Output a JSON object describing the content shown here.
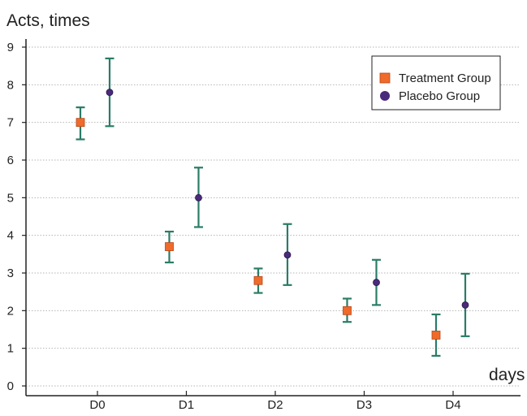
{
  "chart_data": {
    "type": "scatter",
    "ylabel": "Acts, times",
    "xlabel": "days",
    "categories": [
      "D0",
      "D1",
      "D2",
      "D3",
      "D4"
    ],
    "ylim": [
      0,
      9
    ],
    "yticks": [
      "0",
      "1",
      "2",
      "3",
      "4",
      "5",
      "6",
      "7",
      "8",
      "9"
    ],
    "grid": "horizontal dotted",
    "legend_position": "top-right",
    "error_bar_color": "#2a7c66",
    "series": [
      {
        "name": "Treatment Group",
        "marker": "square",
        "color": "#f06a2a",
        "values": [
          7.0,
          3.7,
          2.8,
          2.0,
          1.35
        ],
        "err_low": [
          6.55,
          3.28,
          2.47,
          1.7,
          0.8
        ],
        "err_high": [
          7.4,
          4.1,
          3.12,
          2.32,
          1.9
        ]
      },
      {
        "name": "Placebo Group",
        "marker": "circle",
        "color": "#4a2a7a",
        "values": [
          7.8,
          5.0,
          3.48,
          2.75,
          2.15
        ],
        "err_low": [
          6.9,
          4.22,
          2.68,
          2.15,
          1.32
        ],
        "err_high": [
          8.7,
          5.8,
          4.3,
          3.35,
          2.98
        ]
      }
    ]
  }
}
